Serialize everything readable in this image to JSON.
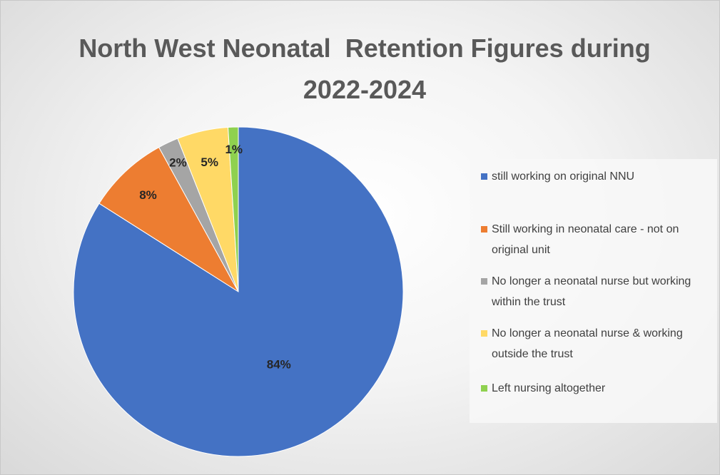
{
  "chart_data": {
    "type": "pie",
    "title": "North West Neonatal  Retention Figures during 2022-2024",
    "categories": [
      "still working on original NNU",
      "Still working in neonatal care - not on original unit",
      "No longer a neonatal nurse but working within the trust",
      "No longer a neonatal nurse & working outside the trust",
      "Left nursing altogether"
    ],
    "values": [
      84,
      8,
      2,
      5,
      1
    ],
    "value_labels": [
      "84%",
      "8%",
      "2%",
      "5%",
      "1%"
    ],
    "colors": [
      "#4472c4",
      "#ed7d31",
      "#a5a5a5",
      "#ffd966",
      "#8fd14f"
    ],
    "legend": "right"
  }
}
